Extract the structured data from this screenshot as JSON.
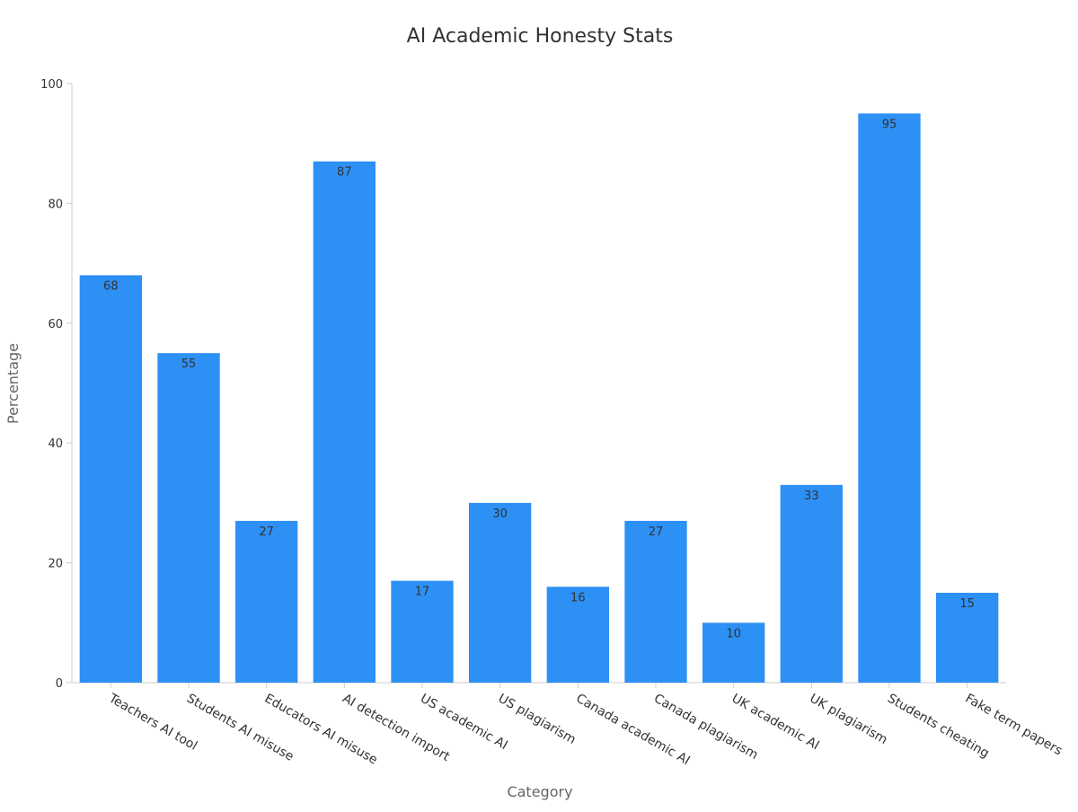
{
  "chart_data": {
    "type": "bar",
    "title": "AI Academic Honesty Stats",
    "xlabel": "Category",
    "ylabel": "Percentage",
    "ylim": [
      0,
      100
    ],
    "yticks": [
      0,
      20,
      40,
      60,
      80,
      100
    ],
    "grid": false,
    "legend": "none",
    "bar_color": "#2d90f5",
    "categories": [
      "Teachers AI tool",
      "Students AI misuse",
      "Educators AI misuse",
      "AI detection import",
      "US academic AI",
      "US plagiarism",
      "Canada academic AI",
      "Canada plagiarism",
      "UK academic AI",
      "UK plagiarism",
      "Students cheating",
      "Fake term papers"
    ],
    "values": [
      68,
      55,
      27,
      87,
      17,
      30,
      16,
      27,
      10,
      33,
      95,
      15
    ]
  }
}
